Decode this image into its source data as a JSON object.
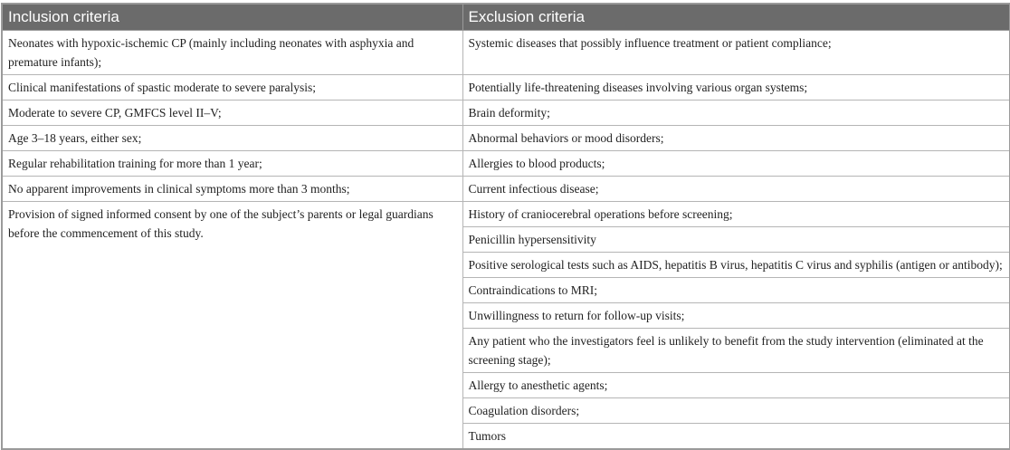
{
  "headers": {
    "inclusion": "Inclusion criteria",
    "exclusion": "Exclusion criteria"
  },
  "inclusion": [
    "Neonates with hypoxic-ischemic CP (mainly including neonates with asphyxia and premature infants);",
    "Clinical manifestations of spastic moderate to severe paralysis;",
    "Moderate to severe CP, GMFCS level II–V;",
    "Age 3–18 years, either sex;",
    "Regular rehabilitation training for more than 1 year;",
    "No apparent improvements in clinical symptoms more than 3 months;",
    "Provision of signed informed consent by one of the subject’s parents or legal guardians before the commencement of this study."
  ],
  "exclusion": [
    "Systemic diseases that possibly influence treatment or patient compliance;",
    "Potentially life-threatening diseases involving various organ systems;",
    "Brain deformity;",
    "Abnormal behaviors or mood disorders;",
    "Allergies to blood products;",
    "Current infectious disease;",
    "History of craniocerebral operations before screening;",
    "Penicillin hypersensitivity",
    "Positive serological tests such as AIDS, hepatitis B virus, hepatitis C virus and syphilis (antigen or antibody);",
    "Contraindications to MRI;",
    "Unwillingness to return for follow-up visits;",
    "Any patient who the investigators feel is unlikely to benefit from the study intervention (eliminated at the screening stage);",
    "Allergy to anesthetic agents;",
    "Coagulation disorders;",
    "Tumors"
  ]
}
